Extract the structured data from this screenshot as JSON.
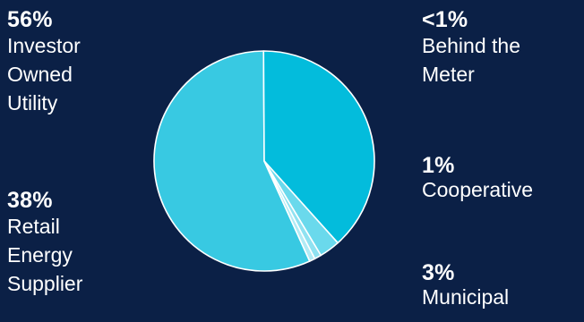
{
  "chart_data": {
    "type": "pie",
    "title": "",
    "slices": [
      {
        "label": "Investor Owned Utility",
        "percent_label": "56%",
        "value": 56,
        "color": "#38c9e2"
      },
      {
        "label": "Retail Energy Supplier",
        "percent_label": "38%",
        "value": 38,
        "color": "#03bcdc"
      },
      {
        "label": "Municipal",
        "percent_label": "3%",
        "value": 3,
        "color": "#6ad9ec"
      },
      {
        "label": "Cooperative",
        "percent_label": "1%",
        "value": 1,
        "color": "#8fe2f1"
      },
      {
        "label": "Behind the Meter",
        "percent_label": "<1%",
        "value": 0.8,
        "color": "#b1ebf5"
      }
    ]
  },
  "labels": {
    "iou": {
      "pct": "56%",
      "desc": "Investor\nOwned\nUtility"
    },
    "res": {
      "pct": "38%",
      "desc": "Retail\nEnergy\nSupplier"
    },
    "btm": {
      "pct": "<1%",
      "desc": "Behind the\nMeter"
    },
    "coop": {
      "pct": "1%",
      "desc": "Cooperative"
    },
    "muni": {
      "pct": "3%",
      "desc": "Municipal"
    }
  },
  "colors": {
    "background": "#0b2046",
    "slice_border": "#ffffff",
    "text": "#ffffff"
  }
}
